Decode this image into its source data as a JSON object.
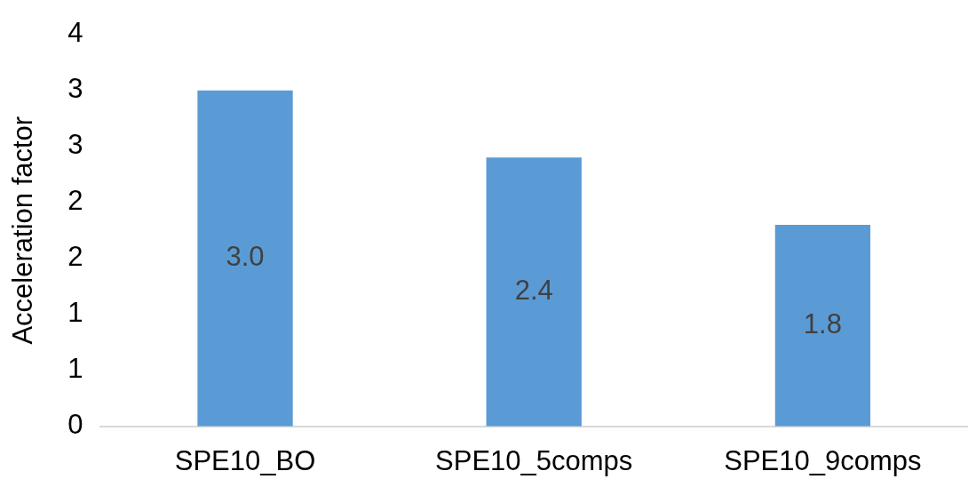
{
  "chart_data": {
    "type": "bar",
    "ylabel": "Acceleration factor",
    "categories": [
      "SPE10_BO",
      "SPE10_5comps",
      "SPE10_9comps"
    ],
    "values": [
      3.0,
      2.4,
      1.8
    ],
    "color": "#5b9bd5",
    "value_labels": [
      "3.0",
      "2.4",
      "1.8"
    ],
    "ylim": [
      0,
      3.5
    ],
    "yticks": [
      0,
      {
        "value": 0.5,
        "label": "1"
      },
      1,
      {
        "value": 1.5,
        "label": "2"
      },
      2,
      {
        "value": 2.5,
        "label": "3"
      },
      3,
      {
        "value": 3.5,
        "label": "4"
      }
    ],
    "grid": false,
    "legend": false
  }
}
